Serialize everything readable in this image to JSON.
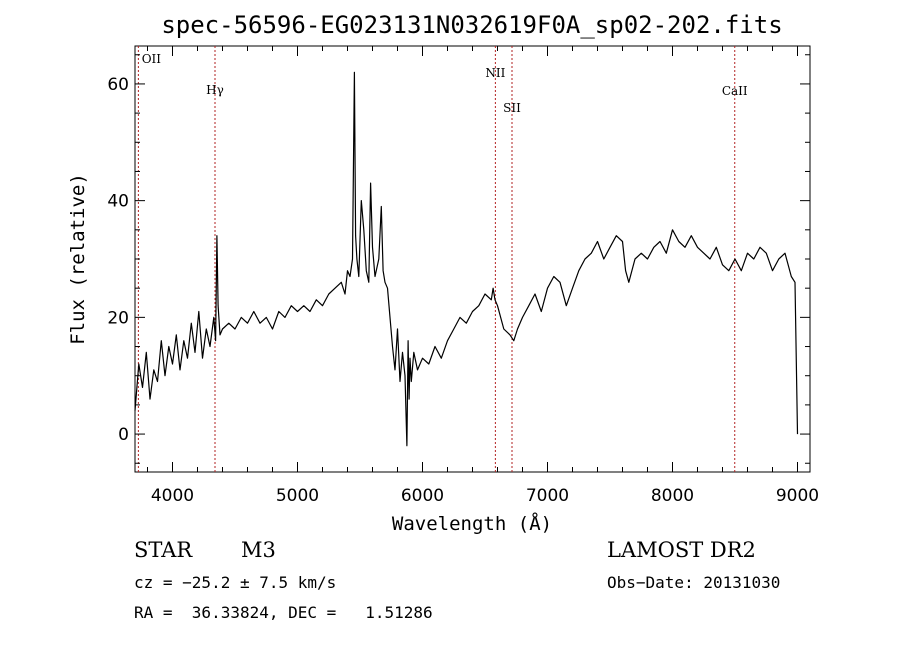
{
  "chart_data": {
    "type": "line",
    "title": "spec-56596-EG023131N032619F0A_sp02-202.fits",
    "xlabel": "Wavelength (Å)",
    "ylabel": "Flux (relative)",
    "xlim": [
      3700,
      9100
    ],
    "ylim": [
      -6.5,
      66.5
    ],
    "x_ticks": [
      4000,
      5000,
      6000,
      7000,
      8000,
      9000
    ],
    "y_ticks": [
      0,
      20,
      40,
      60
    ],
    "grid": false,
    "series": [
      {
        "x": [
          3700,
          3730,
          3760,
          3790,
          3820,
          3850,
          3880,
          3910,
          3940,
          3970,
          4000,
          4030,
          4060,
          4090,
          4120,
          4150,
          4180,
          4210,
          4240,
          4270,
          4300,
          4330,
          4345,
          4355,
          4365,
          4380,
          4400,
          4450,
          4500,
          4550,
          4600,
          4650,
          4700,
          4750,
          4800,
          4850,
          4900,
          4950,
          5000,
          5050,
          5100,
          5150,
          5200,
          5250,
          5300,
          5350,
          5380,
          5400,
          5420,
          5440,
          5455,
          5465,
          5475,
          5490,
          5510,
          5530,
          5550,
          5570,
          5585,
          5600,
          5620,
          5650,
          5670,
          5685,
          5700,
          5720,
          5740,
          5760,
          5780,
          5800,
          5820,
          5840,
          5860,
          5875,
          5885,
          5893,
          5900,
          5910,
          5930,
          5960,
          6000,
          6050,
          6100,
          6150,
          6200,
          6250,
          6300,
          6350,
          6400,
          6450,
          6500,
          6550,
          6565,
          6580,
          6600,
          6650,
          6700,
          6730,
          6760,
          6800,
          6850,
          6900,
          6950,
          7000,
          7050,
          7100,
          7150,
          7200,
          7250,
          7300,
          7350,
          7400,
          7450,
          7500,
          7550,
          7600,
          7625,
          7650,
          7700,
          7750,
          7800,
          7850,
          7900,
          7950,
          8000,
          8050,
          8100,
          8150,
          8200,
          8250,
          8300,
          8350,
          8400,
          8450,
          8500,
          8550,
          8600,
          8650,
          8700,
          8750,
          8800,
          8850,
          8900,
          8950,
          8980,
          9000
        ],
        "y": [
          4,
          12,
          8,
          14,
          6,
          11,
          9,
          16,
          10,
          15,
          12,
          17,
          11,
          16,
          13,
          19,
          14,
          21,
          13,
          18,
          15,
          20,
          16,
          34,
          22,
          17,
          18,
          19,
          18,
          20,
          19,
          21,
          19,
          20,
          18,
          21,
          20,
          22,
          21,
          22,
          21,
          23,
          22,
          24,
          25,
          26,
          24,
          28,
          27,
          30,
          62,
          34,
          30,
          27,
          40,
          35,
          28,
          26,
          43,
          32,
          27,
          30,
          39,
          28,
          26,
          25,
          20,
          15,
          11,
          18,
          9,
          14,
          10,
          -2,
          16,
          6,
          13,
          9,
          14,
          11,
          13,
          12,
          15,
          13,
          16,
          18,
          20,
          19,
          21,
          22,
          24,
          23,
          25,
          23,
          22,
          18,
          17,
          16,
          18,
          20,
          22,
          24,
          21,
          25,
          27,
          26,
          22,
          25,
          28,
          30,
          31,
          33,
          30,
          32,
          34,
          33,
          28,
          26,
          30,
          31,
          30,
          32,
          33,
          31,
          35,
          33,
          32,
          34,
          32,
          31,
          30,
          32,
          29,
          28,
          30,
          28,
          31,
          30,
          32,
          31,
          28,
          30,
          31,
          27,
          26,
          0
        ]
      }
    ],
    "annotations": [
      {
        "label": "OII",
        "x": 3727
      },
      {
        "label": "Hγ",
        "x": 4340
      },
      {
        "label": "NII",
        "x": 6583
      },
      {
        "label": "SII",
        "x": 6716
      },
      {
        "label": "CaII",
        "x": 8498
      }
    ]
  },
  "info": {
    "class": "STAR",
    "subclass": "M3",
    "survey": "LAMOST DR2",
    "cz": "cz = −25.2 ± 7.5 km/s",
    "obs_date": "Obs−Date: 20131030",
    "coords": "RA =  36.33824, DEC =   1.51286"
  },
  "colors": {
    "line": "#000000",
    "marker": "#b22222",
    "background": "#ffffff"
  }
}
